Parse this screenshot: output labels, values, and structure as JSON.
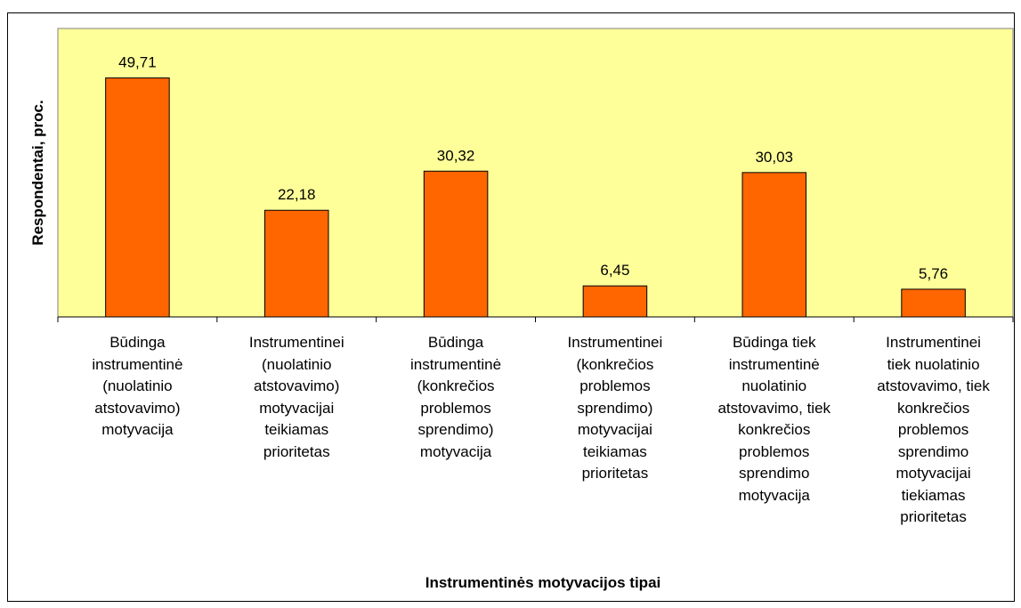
{
  "chart_data": {
    "type": "bar",
    "categories": [
      "Būdinga\ninstrumentinė\n(nuolatinio\natstovavimo)\nmotyvacija",
      "Instrumentinei\n(nuolatinio\natstovavimo)\nmotyvacijai\nteikiamas\nprioritetas",
      "Būdinga\ninstrumentinė\n(konkrečios\nproblemos\nsprendimo)\nmotyvacija",
      "Instrumentinei\n(konkrečios\nproblemos\nsprendimo)\nmotyvacijai\nteikiamas\nprioritetas",
      "Būdinga tiek\ninstrumentinė\nnuolatinio\natstovavimo, tiek\nkonkrečios\nproblemos\nsprendimo\nmotyvacija",
      "Instrumentinei\ntiek nuolatinio\natstovavimo, tiek\nkonkrečios\nproblemos\nsprendimo\nmotyvacijai\ntiekiamas\nprioritetas"
    ],
    "values": [
      49.71,
      22.18,
      30.32,
      6.45,
      30.03,
      5.76
    ],
    "value_labels": [
      "49,71",
      "22,18",
      "30,32",
      "6,45",
      "30,03",
      "5,76"
    ],
    "color": "#ff6600",
    "background": "#ffff99",
    "x_label": "Instrumentinės motyvacijos tipai",
    "y_label": "Respondentai, proc.",
    "ylim": [
      0,
      60
    ]
  }
}
